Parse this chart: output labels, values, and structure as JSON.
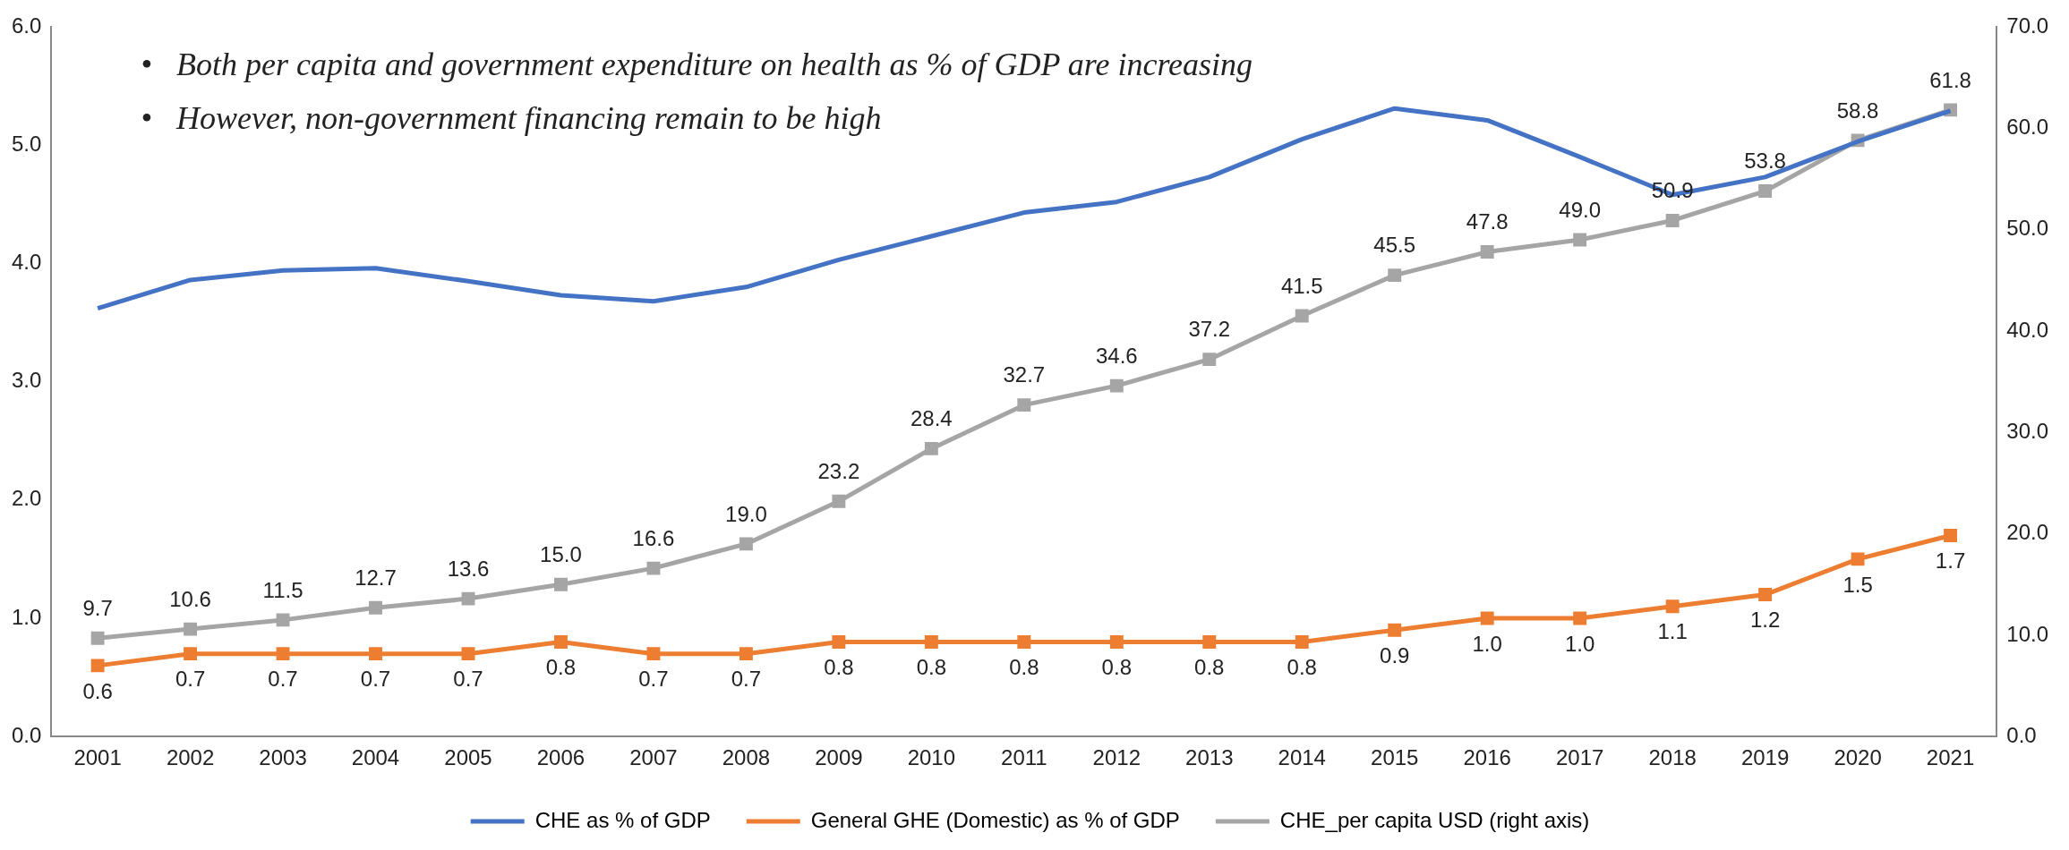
{
  "chart_data": {
    "type": "line",
    "categories": [
      "2001",
      "2002",
      "2003",
      "2004",
      "2005",
      "2006",
      "2007",
      "2008",
      "2009",
      "2010",
      "2011",
      "2012",
      "2013",
      "2014",
      "2015",
      "2016",
      "2017",
      "2018",
      "2019",
      "2020",
      "2021"
    ],
    "series": [
      {
        "name": "CHE as % of GDP",
        "color": "#4472c4",
        "marker": "none",
        "values": [
          3.62,
          3.86,
          3.94,
          3.96,
          3.85,
          3.73,
          3.68,
          3.8,
          4.03,
          4.23,
          4.43,
          4.52,
          4.73,
          5.05,
          5.31,
          5.21,
          4.9,
          4.58,
          4.73,
          5.03,
          5.29
        ]
      },
      {
        "name": "General GHE (Domestic) as % of GDP",
        "color": "#ed7d31",
        "marker": "square",
        "values": [
          0.6,
          0.7,
          0.7,
          0.7,
          0.7,
          0.8,
          0.7,
          0.7,
          0.8,
          0.8,
          0.8,
          0.8,
          0.8,
          0.8,
          0.9,
          1.0,
          1.0,
          1.1,
          1.2,
          1.5,
          1.7
        ],
        "value_labels": [
          "0.6",
          "0.7",
          "0.7",
          "0.7",
          "0.7",
          "0.8",
          "0.7",
          "0.7",
          "0.8",
          "0.8",
          "0.8",
          "0.8",
          "0.8",
          "0.8",
          "0.9",
          "1.0",
          "1.0",
          "1.1",
          "1.2",
          "1.5",
          "1.7"
        ]
      },
      {
        "name": "CHE_per capita USD (right axis)",
        "color": "#a5a5a5",
        "marker": "square",
        "axis": "y2",
        "values": [
          9.7,
          10.6,
          11.5,
          12.7,
          13.6,
          15.0,
          16.6,
          19.0,
          23.2,
          28.4,
          32.7,
          34.6,
          37.2,
          41.5,
          45.5,
          47.8,
          49.0,
          50.9,
          53.8,
          58.8,
          61.8
        ],
        "value_labels": [
          "9.7",
          "10.6",
          "11.5",
          "12.7",
          "13.6",
          "15.0",
          "16.6",
          "19.0",
          "23.2",
          "28.4",
          "32.7",
          "34.6",
          "37.2",
          "41.5",
          "45.5",
          "47.8",
          "49.0",
          "50.9",
          "53.8",
          "58.8",
          "61.8"
        ]
      }
    ],
    "ylim": [
      0,
      6
    ],
    "yticks": [
      {
        "value": 0,
        "label": "0.0"
      },
      {
        "value": 1,
        "label": "1.0"
      },
      {
        "value": 2,
        "label": "2.0"
      },
      {
        "value": 3,
        "label": "3.0"
      },
      {
        "value": 4,
        "label": "4.0"
      },
      {
        "value": 5,
        "label": "5.0"
      },
      {
        "value": 6,
        "label": "6.0"
      }
    ],
    "y2lim": [
      0,
      70
    ],
    "y2ticks": [
      {
        "value": 0,
        "label": "0.0"
      },
      {
        "value": 10,
        "label": "10.0"
      },
      {
        "value": 20,
        "label": "20.0"
      },
      {
        "value": 30,
        "label": "30.0"
      },
      {
        "value": 40,
        "label": "40.0"
      },
      {
        "value": 50,
        "label": "50.0"
      },
      {
        "value": 60,
        "label": "60.0"
      },
      {
        "value": 70,
        "label": "70.0"
      }
    ],
    "annotations": [
      "•   Both per capita and government expenditure on health as % of GDP are increasing",
      "•   However, non-government financing remain to be high"
    ],
    "grid": false,
    "legend": "bottom",
    "line_style": "solid"
  }
}
